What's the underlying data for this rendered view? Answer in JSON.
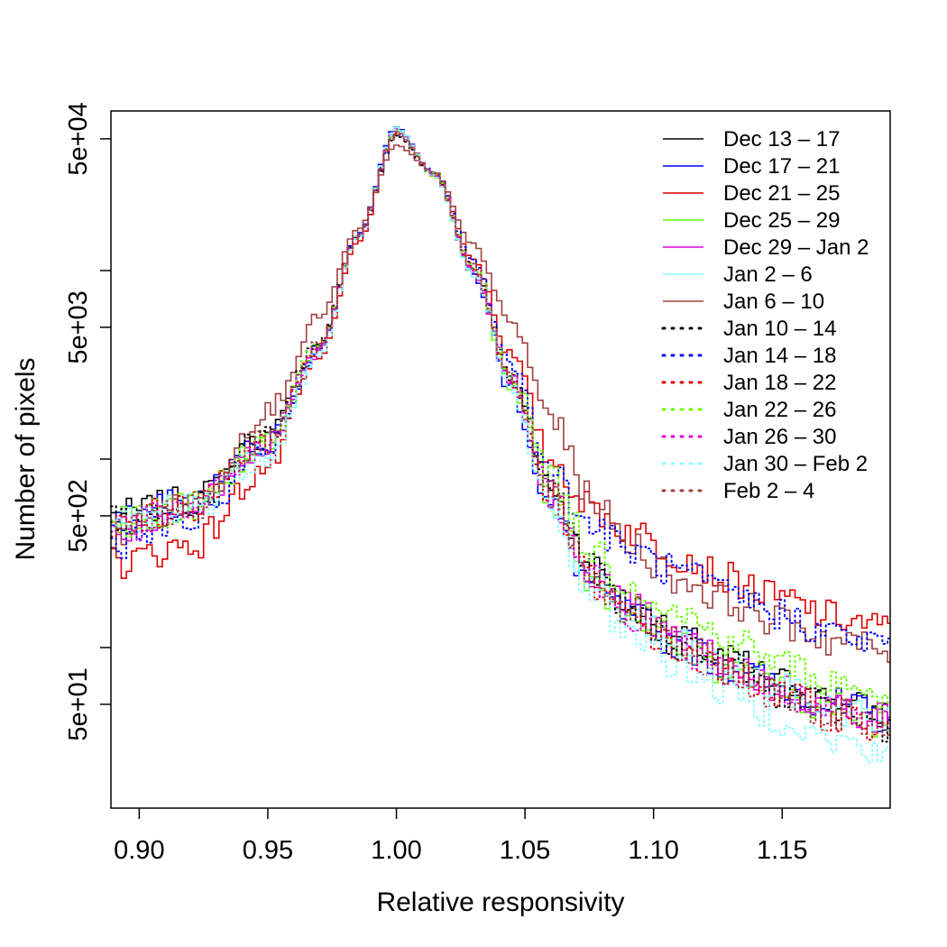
{
  "chart_data": {
    "type": "line",
    "title": "",
    "xlabel": "Relative responsivity",
    "ylabel": "Number of pixels",
    "xlim": [
      0.889,
      1.192
    ],
    "ylim": [
      10,
      100000
    ],
    "y_scale": "log",
    "grid": false,
    "legend_position": "top-right",
    "x_ticks": [
      {
        "value": 0.9,
        "label": "0.90"
      },
      {
        "value": 0.95,
        "label": "0.95"
      },
      {
        "value": 1.0,
        "label": "1.00"
      },
      {
        "value": 1.05,
        "label": "1.05"
      },
      {
        "value": 1.1,
        "label": "1.10"
      },
      {
        "value": 1.15,
        "label": "1.15"
      }
    ],
    "y_ticks": [
      {
        "value": 50,
        "label": "5e+01"
      },
      {
        "value": 500,
        "label": "5e+02"
      },
      {
        "value": 5000,
        "label": "5e+03"
      },
      {
        "value": 50000,
        "label": "5e+04"
      }
    ],
    "y_minor_ticks": [
      100,
      1000,
      10000
    ],
    "series": [
      {
        "name": "Dec 13 – 17",
        "color": "#000000",
        "dash": "solid",
        "points": [
          [
            0.889,
            500
          ],
          [
            0.92,
            600
          ],
          [
            0.95,
            1300
          ],
          [
            0.97,
            4000
          ],
          [
            0.985,
            15000
          ],
          [
            1.0,
            55000
          ],
          [
            1.015,
            32000
          ],
          [
            1.03,
            10000
          ],
          [
            1.045,
            2600
          ],
          [
            1.06,
            700
          ],
          [
            1.075,
            270
          ],
          [
            1.09,
            170
          ],
          [
            1.11,
            110
          ],
          [
            1.13,
            85
          ],
          [
            1.15,
            65
          ],
          [
            1.17,
            52
          ],
          [
            1.192,
            44
          ]
        ]
      },
      {
        "name": "Dec 17 – 21",
        "color": "#0000ff",
        "dash": "solid",
        "points": [
          [
            0.889,
            480
          ],
          [
            0.92,
            590
          ],
          [
            0.95,
            1250
          ],
          [
            0.97,
            3900
          ],
          [
            0.985,
            15500
          ],
          [
            1.0,
            58000
          ],
          [
            1.015,
            32000
          ],
          [
            1.03,
            9500
          ],
          [
            1.045,
            2300
          ],
          [
            1.06,
            560
          ],
          [
            1.075,
            220
          ],
          [
            1.09,
            150
          ],
          [
            1.11,
            105
          ],
          [
            1.13,
            80
          ],
          [
            1.15,
            62
          ],
          [
            1.17,
            50
          ],
          [
            1.192,
            42
          ]
        ]
      },
      {
        "name": "Dec 21 – 25",
        "color": "#dd0000",
        "dash": "solid",
        "points": [
          [
            0.889,
            280
          ],
          [
            0.92,
            350
          ],
          [
            0.95,
            900
          ],
          [
            0.97,
            3400
          ],
          [
            0.985,
            14000
          ],
          [
            1.0,
            55000
          ],
          [
            1.015,
            33000
          ],
          [
            1.03,
            11500
          ],
          [
            1.045,
            3500
          ],
          [
            1.06,
            1000
          ],
          [
            1.075,
            560
          ],
          [
            1.09,
            420
          ],
          [
            1.11,
            310
          ],
          [
            1.13,
            230
          ],
          [
            1.15,
            180
          ],
          [
            1.17,
            145
          ],
          [
            1.192,
            125
          ]
        ]
      },
      {
        "name": "Dec 25 – 29",
        "color": "#66ff00",
        "dash": "solid",
        "points": [
          [
            0.889,
            470
          ],
          [
            0.92,
            570
          ],
          [
            0.95,
            1220
          ],
          [
            0.97,
            3850
          ],
          [
            0.985,
            15000
          ],
          [
            1.0,
            56000
          ],
          [
            1.015,
            31500
          ],
          [
            1.03,
            9700
          ],
          [
            1.045,
            2500
          ],
          [
            1.06,
            620
          ],
          [
            1.075,
            240
          ],
          [
            1.09,
            155
          ],
          [
            1.11,
            100
          ],
          [
            1.13,
            75
          ],
          [
            1.15,
            58
          ],
          [
            1.17,
            48
          ],
          [
            1.192,
            40
          ]
        ]
      },
      {
        "name": "Dec 29 – Jan 2",
        "color": "#dd00dd",
        "dash": "solid",
        "points": [
          [
            0.889,
            430
          ],
          [
            0.92,
            540
          ],
          [
            0.95,
            1200
          ],
          [
            0.97,
            3800
          ],
          [
            0.985,
            15200
          ],
          [
            1.0,
            56500
          ],
          [
            1.015,
            32000
          ],
          [
            1.03,
            9800
          ],
          [
            1.045,
            2550
          ],
          [
            1.06,
            650
          ],
          [
            1.075,
            260
          ],
          [
            1.09,
            165
          ],
          [
            1.11,
            110
          ],
          [
            1.13,
            82
          ],
          [
            1.15,
            60
          ],
          [
            1.17,
            48
          ],
          [
            1.192,
            42
          ]
        ]
      },
      {
        "name": "Jan 2 – 6",
        "color": "#88ffff",
        "dash": "solid",
        "points": [
          [
            0.889,
            460
          ],
          [
            0.92,
            560
          ],
          [
            0.95,
            1150
          ],
          [
            0.97,
            3700
          ],
          [
            0.985,
            15300
          ],
          [
            1.0,
            57000
          ],
          [
            1.015,
            31800
          ],
          [
            1.03,
            9600
          ],
          [
            1.045,
            2450
          ],
          [
            1.06,
            600
          ],
          [
            1.075,
            230
          ],
          [
            1.09,
            150
          ],
          [
            1.11,
            102
          ],
          [
            1.13,
            77
          ],
          [
            1.15,
            59
          ],
          [
            1.17,
            47
          ],
          [
            1.192,
            41
          ]
        ]
      },
      {
        "name": "Jan 6 – 10",
        "color": "#a04040",
        "dash": "solid",
        "points": [
          [
            0.889,
            400
          ],
          [
            0.92,
            560
          ],
          [
            0.95,
            1800
          ],
          [
            0.97,
            5600
          ],
          [
            0.985,
            16500
          ],
          [
            1.0,
            46000
          ],
          [
            1.015,
            33000
          ],
          [
            1.03,
            13500
          ],
          [
            1.045,
            5200
          ],
          [
            1.06,
            1700
          ],
          [
            1.075,
            650
          ],
          [
            1.09,
            360
          ],
          [
            1.11,
            230
          ],
          [
            1.13,
            175
          ],
          [
            1.15,
            135
          ],
          [
            1.17,
            110
          ],
          [
            1.192,
            95
          ]
        ]
      },
      {
        "name": "Jan 10 – 14",
        "color": "#000000",
        "dash": "dotted",
        "points": [
          [
            0.889,
            460
          ],
          [
            0.92,
            560
          ],
          [
            0.95,
            1350
          ],
          [
            0.97,
            4100
          ],
          [
            0.985,
            15200
          ],
          [
            1.0,
            52000
          ],
          [
            1.015,
            32500
          ],
          [
            1.03,
            10500
          ],
          [
            1.045,
            2700
          ],
          [
            1.06,
            720
          ],
          [
            1.075,
            265
          ],
          [
            1.09,
            160
          ],
          [
            1.11,
            105
          ],
          [
            1.13,
            78
          ],
          [
            1.15,
            58
          ],
          [
            1.17,
            46
          ],
          [
            1.192,
            38
          ]
        ]
      },
      {
        "name": "Jan 14 – 18",
        "color": "#0000ff",
        "dash": "dotted",
        "points": [
          [
            0.889,
            360
          ],
          [
            0.92,
            460
          ],
          [
            0.95,
            1150
          ],
          [
            0.97,
            3900
          ],
          [
            0.985,
            15000
          ],
          [
            1.0,
            53000
          ],
          [
            1.015,
            33000
          ],
          [
            1.03,
            11000
          ],
          [
            1.045,
            3100
          ],
          [
            1.06,
            900
          ],
          [
            1.075,
            450
          ],
          [
            1.09,
            330
          ],
          [
            1.11,
            250
          ],
          [
            1.13,
            190
          ],
          [
            1.15,
            150
          ],
          [
            1.17,
            118
          ],
          [
            1.192,
            100
          ]
        ]
      },
      {
        "name": "Jan 18 – 22",
        "color": "#dd0000",
        "dash": "dotted",
        "points": [
          [
            0.889,
            450
          ],
          [
            0.92,
            560
          ],
          [
            0.95,
            1250
          ],
          [
            0.97,
            3950
          ],
          [
            0.985,
            15100
          ],
          [
            1.0,
            54000
          ],
          [
            1.015,
            32200
          ],
          [
            1.03,
            10000
          ],
          [
            1.045,
            2550
          ],
          [
            1.06,
            640
          ],
          [
            1.075,
            230
          ],
          [
            1.09,
            145
          ],
          [
            1.11,
            95
          ],
          [
            1.13,
            72
          ],
          [
            1.15,
            55
          ],
          [
            1.17,
            44
          ],
          [
            1.192,
            36
          ]
        ]
      },
      {
        "name": "Jan 22 – 26",
        "color": "#66ff00",
        "dash": "dotted",
        "points": [
          [
            0.889,
            440
          ],
          [
            0.92,
            550
          ],
          [
            0.95,
            1230
          ],
          [
            0.97,
            3950
          ],
          [
            0.985,
            15200
          ],
          [
            1.0,
            54500
          ],
          [
            1.015,
            32600
          ],
          [
            1.03,
            10300
          ],
          [
            1.045,
            2800
          ],
          [
            1.06,
            800
          ],
          [
            1.075,
            340
          ],
          [
            1.09,
            220
          ],
          [
            1.11,
            150
          ],
          [
            1.13,
            110
          ],
          [
            1.15,
            82
          ],
          [
            1.17,
            65
          ],
          [
            1.192,
            55
          ]
        ]
      },
      {
        "name": "Jan 26 – 30",
        "color": "#dd00dd",
        "dash": "dotted",
        "points": [
          [
            0.889,
            420
          ],
          [
            0.92,
            530
          ],
          [
            0.95,
            1200
          ],
          [
            0.97,
            3850
          ],
          [
            0.985,
            15100
          ],
          [
            1.0,
            55000
          ],
          [
            1.015,
            32300
          ],
          [
            1.03,
            10000
          ],
          [
            1.045,
            2600
          ],
          [
            1.06,
            660
          ],
          [
            1.075,
            245
          ],
          [
            1.09,
            152
          ],
          [
            1.11,
            100
          ],
          [
            1.13,
            74
          ],
          [
            1.15,
            56
          ],
          [
            1.17,
            45
          ],
          [
            1.192,
            38
          ]
        ]
      },
      {
        "name": "Jan 30 – Feb 2",
        "color": "#88ffff",
        "dash": "dotted",
        "points": [
          [
            0.889,
            450
          ],
          [
            0.92,
            550
          ],
          [
            0.95,
            1050
          ],
          [
            0.97,
            3500
          ],
          [
            0.985,
            15000
          ],
          [
            1.0,
            55500
          ],
          [
            1.015,
            31800
          ],
          [
            1.03,
            9500
          ],
          [
            1.045,
            2350
          ],
          [
            1.06,
            560
          ],
          [
            1.075,
            200
          ],
          [
            1.09,
            125
          ],
          [
            1.11,
            80
          ],
          [
            1.13,
            58
          ],
          [
            1.15,
            42
          ],
          [
            1.17,
            32
          ],
          [
            1.192,
            26
          ]
        ]
      },
      {
        "name": "Feb 2 – 4",
        "color": "#a04040",
        "dash": "dotted",
        "points": [
          [
            0.889,
            430
          ],
          [
            0.92,
            550
          ],
          [
            0.95,
            1300
          ],
          [
            0.97,
            4100
          ],
          [
            0.985,
            15300
          ],
          [
            1.0,
            53000
          ],
          [
            1.015,
            32600
          ],
          [
            1.03,
            10400
          ],
          [
            1.045,
            2700
          ],
          [
            1.06,
            700
          ],
          [
            1.075,
            255
          ],
          [
            1.09,
            158
          ],
          [
            1.11,
            104
          ],
          [
            1.13,
            77
          ],
          [
            1.15,
            57
          ],
          [
            1.17,
            45
          ],
          [
            1.192,
            38
          ]
        ]
      }
    ]
  }
}
